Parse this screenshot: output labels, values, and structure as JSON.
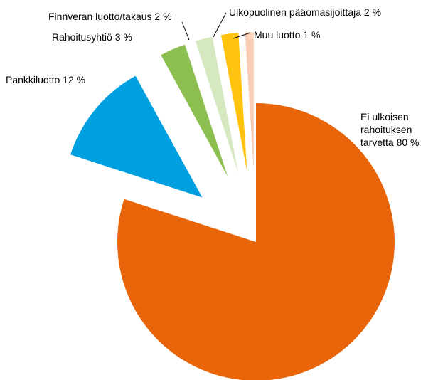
{
  "chart_data": {
    "type": "pie",
    "categories": [
      "Ei ulkoisen rahoituksen tarvetta",
      "Pankkiluotto",
      "Rahoitusyhtiö",
      "Finnveran luotto/takaus",
      "Ulkopuolinen pääomasijoittaja",
      "Muu luotto"
    ],
    "values": [
      80,
      12,
      3,
      2,
      2,
      1
    ],
    "value_labels": [
      "80 %",
      "12 %",
      "3 %",
      "2 %",
      "2 %",
      "1 %"
    ],
    "colors": [
      "#e8650a",
      "#00a0e0",
      "#8cbf4f",
      "#d5e8c0",
      "#ffc20e",
      "#f9cdb4"
    ]
  }
}
